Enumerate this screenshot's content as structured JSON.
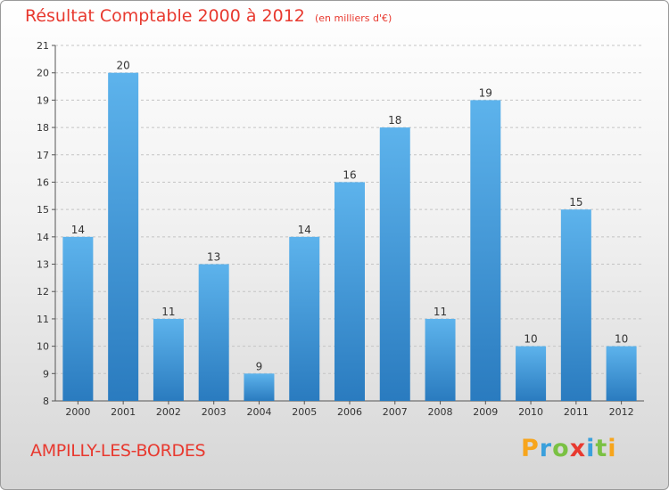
{
  "title": "Résultat Comptable 2000 à 2012",
  "unit": "(en milliers d'€)",
  "commune": "AMPILLY-LES-BORDES",
  "logo": {
    "text": "Proxiti",
    "letters": [
      "P",
      "r",
      "o",
      "x",
      "i",
      "t",
      "i"
    ],
    "colors": [
      "#f7a51c",
      "#3aa0dc",
      "#7ac143",
      "#e8392f",
      "#3aa0dc",
      "#7ac143",
      "#f7a51c"
    ]
  },
  "colors": {
    "bar_top": "#5db3ec",
    "bar_bottom": "#2a7bbf",
    "title": "#e8392f"
  },
  "chart_data": {
    "type": "bar",
    "title": "Résultat Comptable 2000 à 2012",
    "xlabel": "",
    "ylabel": "",
    "categories": [
      "2000",
      "2001",
      "2002",
      "2003",
      "2004",
      "2005",
      "2006",
      "2007",
      "2008",
      "2009",
      "2010",
      "2011",
      "2012"
    ],
    "values": [
      14,
      20,
      11,
      13,
      9,
      14,
      16,
      18,
      11,
      19,
      10,
      15,
      10
    ],
    "ylim": [
      8,
      21
    ],
    "yticks": [
      8,
      9,
      10,
      11,
      12,
      13,
      14,
      15,
      16,
      17,
      18,
      19,
      20,
      21
    ],
    "grid": true
  }
}
